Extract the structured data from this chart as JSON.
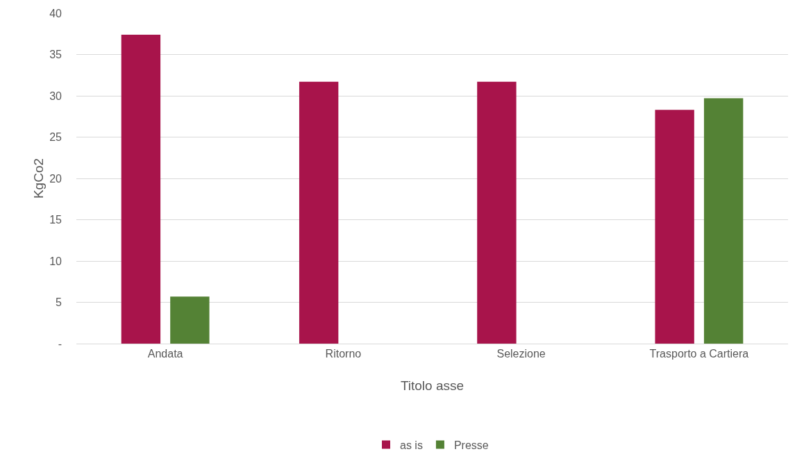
{
  "chart_data": {
    "type": "bar",
    "xlabel": "Titolo asse",
    "ylabel": "KgCo2",
    "categories": [
      "Andata",
      "Ritorno",
      "Selezione",
      "Trasporto a Cartiera"
    ],
    "series": [
      {
        "name": "as is",
        "color": "#a8144b",
        "values": [
          37.4,
          31.7,
          31.7,
          28.3
        ]
      },
      {
        "name": "Presse",
        "color": "#548235",
        "values": [
          5.7,
          null,
          null,
          29.7
        ]
      }
    ],
    "ylim": [
      0,
      40
    ],
    "yticks": [
      {
        "value": 0,
        "label": "-"
      },
      5,
      10,
      15,
      20,
      25,
      30,
      35,
      40
    ],
    "grid": "y",
    "legend": "bottom"
  }
}
